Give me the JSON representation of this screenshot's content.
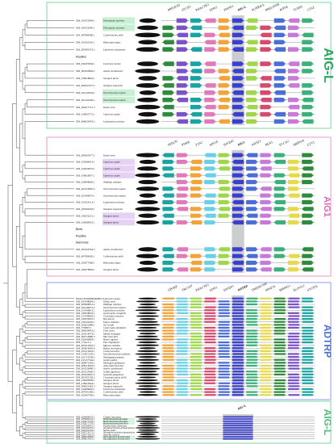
{
  "panels": [
    {
      "id": "aig-l-top",
      "title": "AIG-L",
      "color": "#2aa861",
      "border": "#7fd6a6",
      "title_size": 16,
      "genes": [
        "PPP1R3D",
        "SYCP2",
        "PHACTR3",
        "EDN3",
        "ZNF831",
        "AIG-L",
        "AURKB-L",
        "PRELID3B",
        "ATP5E",
        "TUBB1",
        "CTSZ"
      ],
      "target_index": 5,
      "rows": [
        {
          "acc": "XM_031952994.1",
          "sp": "Petromyzon marinus",
          "hl": "#c9f0d4"
        },
        {
          "acc": "XM_031952995.1",
          "sp": "Petromyzon marinus",
          "hl": "#c9f0d4"
        },
        {
          "acc": "XM_007884580.1",
          "sp": "Callorhinchus milii",
          "hl": ""
        },
        {
          "acc": "XM_033326191.1",
          "sp": "Rhincodon typus",
          "hl": ""
        },
        {
          "acc": "XM_005993374.2",
          "sp": "Latimeria chalumnae",
          "hl": ""
        },
        {
          "acc": "",
          "sp": "",
          "group": "Reptiles",
          "hl": ""
        },
        {
          "acc": "XM_032205936.1",
          "sp": "Lonchura striata",
          "hl": ""
        },
        {
          "acc": "XM_003220894.2",
          "sp": "Anolis carolinensis",
          "hl": ""
        },
        {
          "acc": "XM_018218824.1",
          "sp": "Xenopus laevis",
          "hl": ""
        },
        {
          "acc": "XM_002947475.3",
          "sp": "Xenopus tropicalis",
          "hl": ""
        },
        {
          "acc": "XM_021433954.1",
          "sp": "Oncorhynchus mykiss",
          "hl": "#c9f0d4"
        },
        {
          "acc": "XM_021442294.1",
          "sp": "Oncorhynchus mykiss",
          "hl": "#c9f0d4"
        },
        {
          "acc": "XM_002077715.3",
          "sp": "Danio rerio",
          "hl": ""
        },
        {
          "acc": "XM_019065772.1",
          "sp": "Cyprinus carpio",
          "hl": ""
        },
        {
          "acc": "XM_006629354.2",
          "sp": "Lepisosteus oculatus",
          "hl": ""
        }
      ]
    },
    {
      "id": "aig1",
      "title": "AIG1",
      "color": "#d96bb1",
      "border": "#e89acb",
      "title_size": 11,
      "genes": [
        "DHX39",
        "PNRB",
        "FTA1",
        "SIN3A",
        "HIVEP2",
        "AIG1",
        "ADAT2",
        "PEX3",
        "FUCA2",
        "MRPS30",
        "LYV1"
      ],
      "target_index": 5,
      "rows": [
        {
          "acc": "XM_009305477.2",
          "sp": "Danio rerio",
          "hl": ""
        },
        {
          "acc": "XM_019280014.1",
          "sp": "Cyprinus carpio",
          "hl": "#e6d2f5"
        },
        {
          "acc": "XM_019226974.1",
          "sp": "Cyprinus carpio",
          "hl": "#e6d2f5"
        },
        {
          "acc": "XM_019026857.1",
          "sp": "Cyprinus carpio",
          "hl": "#e6d2f5"
        },
        {
          "acc": "XM_020848660.1",
          "sp": "Takifugu rubripes",
          "hl": ""
        },
        {
          "acc": "XM_021419963.2",
          "sp": "Oncorhynchus mykiss",
          "hl": ""
        },
        {
          "acc": "XM_021460874.1",
          "sp": "Oncorhynchus mykiss",
          "hl": ""
        },
        {
          "acc": "XM_015324113.1",
          "sp": "Lepisosteus oculatus",
          "hl": ""
        },
        {
          "acc": "XM_031800203.1",
          "sp": "Xenopus tropicalis",
          "hl": ""
        },
        {
          "acc": "XM_018252221.1",
          "sp": "Xenopus laevis",
          "hl": "#e6d2f5"
        },
        {
          "acc": "XM_018289053.1",
          "sp": "Xenopus laevis",
          "hl": "#e6d2f5"
        },
        {
          "acc": "",
          "sp": "",
          "group": "Birds",
          "hl": ""
        },
        {
          "acc": "",
          "sp": "",
          "group": "Reptiles",
          "hl": ""
        },
        {
          "acc": "",
          "sp": "",
          "group": "Mammals",
          "hl": ""
        },
        {
          "acc": "XM_003220764.3",
          "sp": "Anolis carolinensis",
          "hl": ""
        },
        {
          "acc": "XM_007908342.1",
          "sp": "Callorhinchus milii",
          "hl": ""
        },
        {
          "acc": "XM_020377068.1",
          "sp": "Rhincodon typus",
          "hl": ""
        },
        {
          "acc": "XM_032078864.1",
          "sp": "Xenopus laevis",
          "hl": ""
        }
      ]
    },
    {
      "id": "adtrp",
      "title": "ADTRP",
      "color": "#4f6fd1",
      "border": "#8f9ff0",
      "title_size": 12,
      "genes": [
        "GPORP",
        "TBC1D7",
        "PHACTR1",
        "EDN1",
        "HIVEP1",
        "ADTRP",
        "TMEM170B",
        "SRSF10",
        "BMIM11",
        "ELOVL2",
        "SYCP2L"
      ],
      "target_index": 5,
      "rows": [
        {
          "acc": "ENSCCRT00000049684.1",
          "sp": "Cyprinus carpio",
          "hl": ""
        },
        {
          "acc": "XM_031408694.2",
          "sp": "Danio rerio",
          "hl": ""
        },
        {
          "acc": "XM_003969851.2",
          "sp": "Takifugu rubripes",
          "hl": ""
        },
        {
          "acc": "XM_021449672.2",
          "sp": "Oncorhynchus mykiss",
          "hl": ""
        },
        {
          "acc": "XM_015346813.1",
          "sp": "Lepisosteus oculatus",
          "hl": ""
        },
        {
          "acc": "XM_032958053.1",
          "sp": "Geotrypetes seraphini",
          "hl": ""
        },
        {
          "acc": "XM_017449083.2",
          "sp": "Chrysemys sinensis",
          "hl": ""
        },
        {
          "acc": "XM_032059025.1",
          "sp": "Bos taurus",
          "hl": ""
        },
        {
          "acc": "XM_019101005.1",
          "sp": "Equus caballus",
          "hl": ""
        },
        {
          "acc": "XM_033631889.1",
          "sp": "Sus scrofa",
          "hl": ""
        },
        {
          "acc": "XM_575887.6",
          "sp": "Canis lupus familiaris",
          "hl": ""
        },
        {
          "acc": "XM_006038453.2",
          "sp": "Felis catus",
          "hl": ""
        },
        {
          "acc": "XM_021014074.1",
          "sp": "Myotis lucifugus",
          "hl": ""
        },
        {
          "acc": "XM_002710980.3",
          "sp": "Mus musculus",
          "hl": ""
        },
        {
          "acc": "XM_032046804.1",
          "sp": "Homo sapiens",
          "hl": ""
        },
        {
          "acc": "NM_175411.4",
          "sp": "Pan troglodytes",
          "hl": ""
        },
        {
          "acc": "XM_003210363.2",
          "sp": "Macaca mulatta",
          "hl": ""
        },
        {
          "acc": "XM_003818492.4",
          "sp": "Rattus norvegicus",
          "hl": ""
        },
        {
          "acc": "XM_021415624.1",
          "sp": "Cavia porcellus",
          "hl": ""
        },
        {
          "acc": "XM_013051520.1",
          "sp": "Ornithorhynchus anatinus",
          "hl": ""
        },
        {
          "acc": "XM_021753528.2",
          "sp": "Taeniopygia guttata",
          "hl": ""
        },
        {
          "acc": "XM_015157344.1",
          "sp": "Gallus gallus",
          "hl": ""
        },
        {
          "acc": "XM_009871456.2",
          "sp": "Meleagris gallopavo",
          "hl": ""
        },
        {
          "acc": "XM_008114046.2",
          "sp": "Anas platyrhynchos",
          "hl": ""
        },
        {
          "acc": "XM_003226980.3",
          "sp": "Anolis carolinensis",
          "hl": ""
        },
        {
          "acc": "XM_003225960.3",
          "sp": "Gekko japonicus",
          "hl": ""
        },
        {
          "acc": "XM_003226967.2",
          "sp": "Gavialis gangeticus",
          "hl": ""
        },
        {
          "acc": "XM_005305159.2",
          "sp": "Chrysemys picta bellii",
          "hl": ""
        },
        {
          "acc": "XM_018260099.1",
          "sp": "Xenopus laevis",
          "hl": ""
        },
        {
          "acc": "XM_018410944.1",
          "sp": "Xenopus laevis",
          "hl": ""
        },
        {
          "acc": "XM_004923463.3",
          "sp": "Xenopus tropicalis",
          "hl": ""
        },
        {
          "acc": "XM_014999645.1",
          "sp": "Latimeria chalumnae",
          "hl": ""
        },
        {
          "acc": "XM_007901386.1",
          "sp": "Callorhinchus milii",
          "hl": ""
        },
        {
          "acc": "XM_020367456.1",
          "sp": "Rhincodon typus",
          "hl": ""
        }
      ]
    },
    {
      "id": "aig-l-bottom",
      "title": "AIG-L",
      "color": "#58b97a",
      "border": "#7fd6a6",
      "title_size": 12,
      "genes": [
        "AIG-L"
      ],
      "target_index": 0,
      "rows": [
        {
          "acc": "XM_026406035.1",
          "sp": "Clupea harengus",
          "hl": ""
        },
        {
          "acc": "XM_035080122.1",
          "sp": "Branchiostoma floridae",
          "hl": "#c9f0d4"
        },
        {
          "acc": "XM_035077578.1",
          "sp": "Branchiostoma floridae",
          "hl": "#c9f0d4"
        },
        {
          "acc": "XM_035077578.1",
          "sp": "Branchiostoma belcheri",
          "hl": "#c9f0d4"
        },
        {
          "acc": "XM_019700937.1",
          "sp": "Paralichthys olivaceus",
          "hl": ""
        },
        {
          "acc": "XM_022502252.1",
          "sp": "Acanthochromis polyacanthus",
          "hl": ""
        },
        {
          "acc": "XM_029701054.1",
          "sp": "Salmo salar",
          "hl": ""
        },
        {
          "acc": "XM_030776173.1",
          "sp": "Strongylocentrotus purpuratus",
          "hl": ""
        },
        {
          "acc": "XM_030773313.1",
          "sp": "Asterias rubens",
          "hl": ""
        },
        {
          "acc": "XM_006832846.1",
          "sp": "Saccoglossus kowalevskii",
          "hl": "#c9f0d4"
        },
        {
          "acc": "XM_006810413.1",
          "sp": "Saccoglossus kowalevskii",
          "hl": "#c9f0d4"
        }
      ]
    }
  ],
  "palette": [
    "#2e8b3d",
    "#7c52c9",
    "#1aa3a3",
    "#e07ab8",
    "#f2a33a",
    "#6ad0e6",
    "#9fd64a",
    "#d64a6e",
    "#4a6ed6",
    "#c77ad8",
    "#3bb07a",
    "#e6d94a"
  ]
}
